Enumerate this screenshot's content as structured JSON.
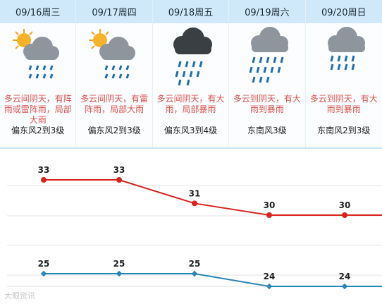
{
  "days": [
    {
      "date": "09/16周三",
      "icon": "partly-cloudy-sun-rain-icon",
      "desc": "多云间阴天，有阵雨或雷阵雨，局部大雨",
      "wind": "偏东风2到3级"
    },
    {
      "date": "09/17周四",
      "icon": "partly-cloudy-sun-rain-icon",
      "desc": "多云间阴天，有雷阵雨，局部大雨",
      "wind": "偏东风2到3级"
    },
    {
      "date": "09/18周五",
      "icon": "dark-cloud-heavy-rain-icon",
      "desc": "多云间阴天，有大雨，局部暴雨",
      "wind": "偏东风3到4级"
    },
    {
      "date": "09/19周六",
      "icon": "cloud-heavy-rain-icon",
      "desc": "多云到阴天，有大雨到暴雨",
      "wind": "东南风3级"
    },
    {
      "date": "09/20周日",
      "icon": "cloud-heavy-rain-icon",
      "desc": "多云到阴天，有大雨到暴雨",
      "wind": "东南风2到3级"
    }
  ],
  "chart_data": {
    "type": "line",
    "categories": [
      "09/16周三",
      "09/17周四",
      "09/18周五",
      "09/19周六",
      "09/20周日"
    ],
    "series": [
      {
        "values": [
          33,
          33,
          31,
          30,
          30
        ],
        "color": "#d9231d"
      },
      {
        "values": [
          25,
          25,
          25,
          24,
          24
        ],
        "color": "#2a86b8"
      }
    ],
    "grid": true
  },
  "watermark": "大眼资讯"
}
